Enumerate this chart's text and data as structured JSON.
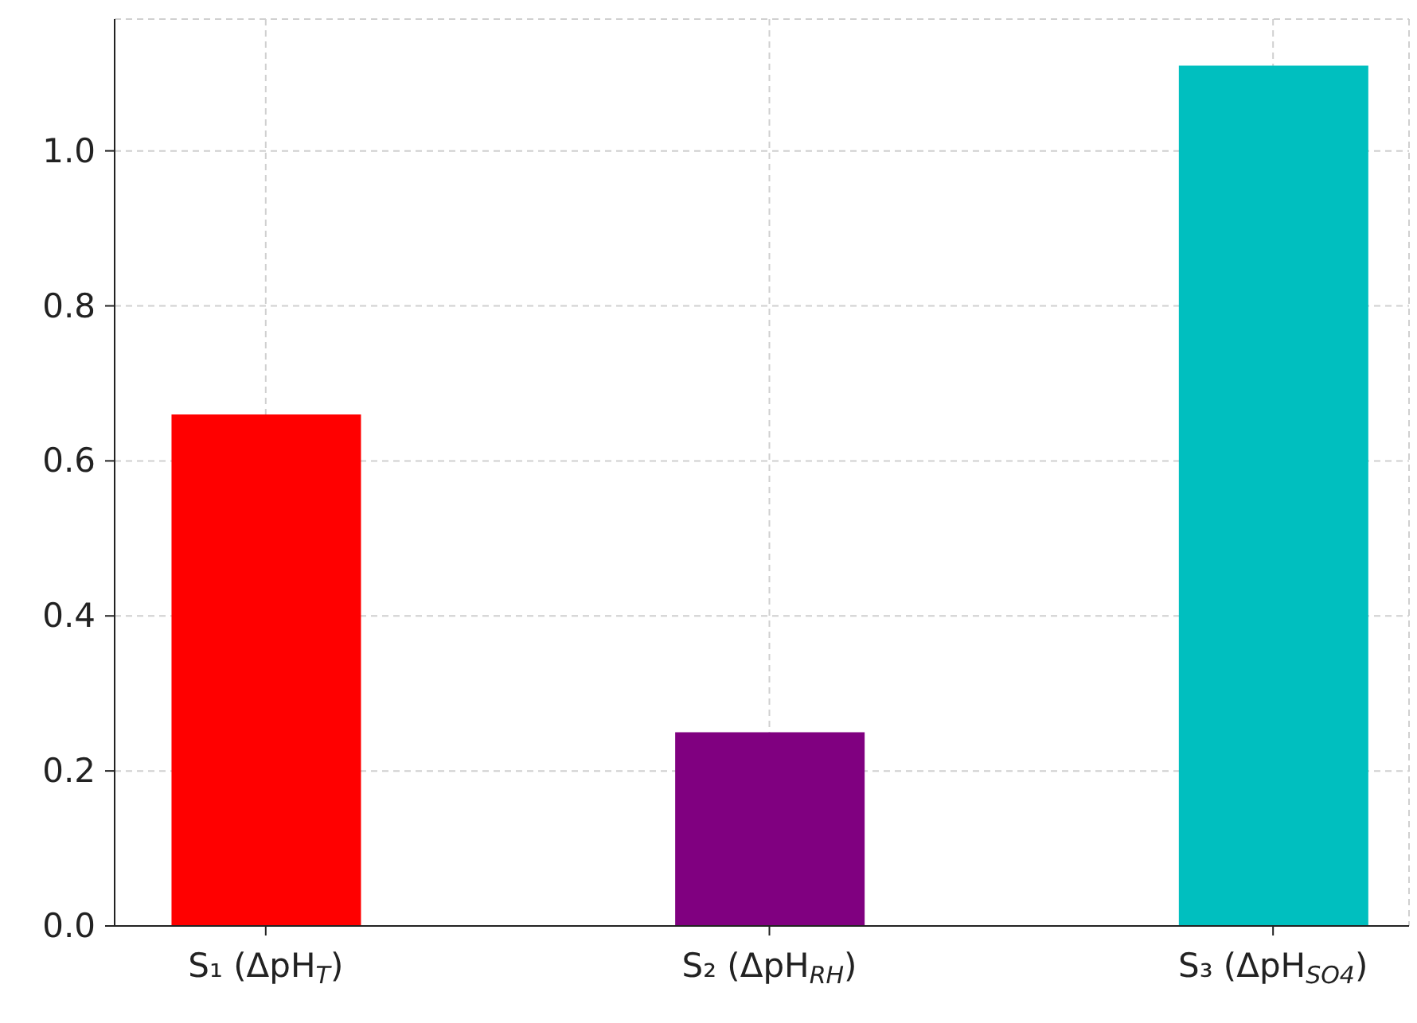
{
  "chart_data": {
    "type": "bar",
    "categories": [
      "S₁ (ΔpH$_{T}$)",
      "S₂ (ΔpH$_{RH}$)",
      "S₃ (ΔpH$_{SO4}$)"
    ],
    "values": [
      0.66,
      0.25,
      1.11
    ],
    "colors": [
      "#ff0000",
      "#800080",
      "#00bfbf"
    ],
    "ylim": [
      0,
      1.17
    ],
    "yticks": [
      {
        "value": 0,
        "label": "0.0"
      },
      {
        "value": 0.2,
        "label": "0.2"
      },
      {
        "value": 0.4,
        "label": "0.4"
      },
      {
        "value": 0.6,
        "label": "0.6"
      },
      {
        "value": 0.8,
        "label": "0.8"
      },
      {
        "value": 1,
        "label": "1.0"
      }
    ],
    "grid": true
  }
}
